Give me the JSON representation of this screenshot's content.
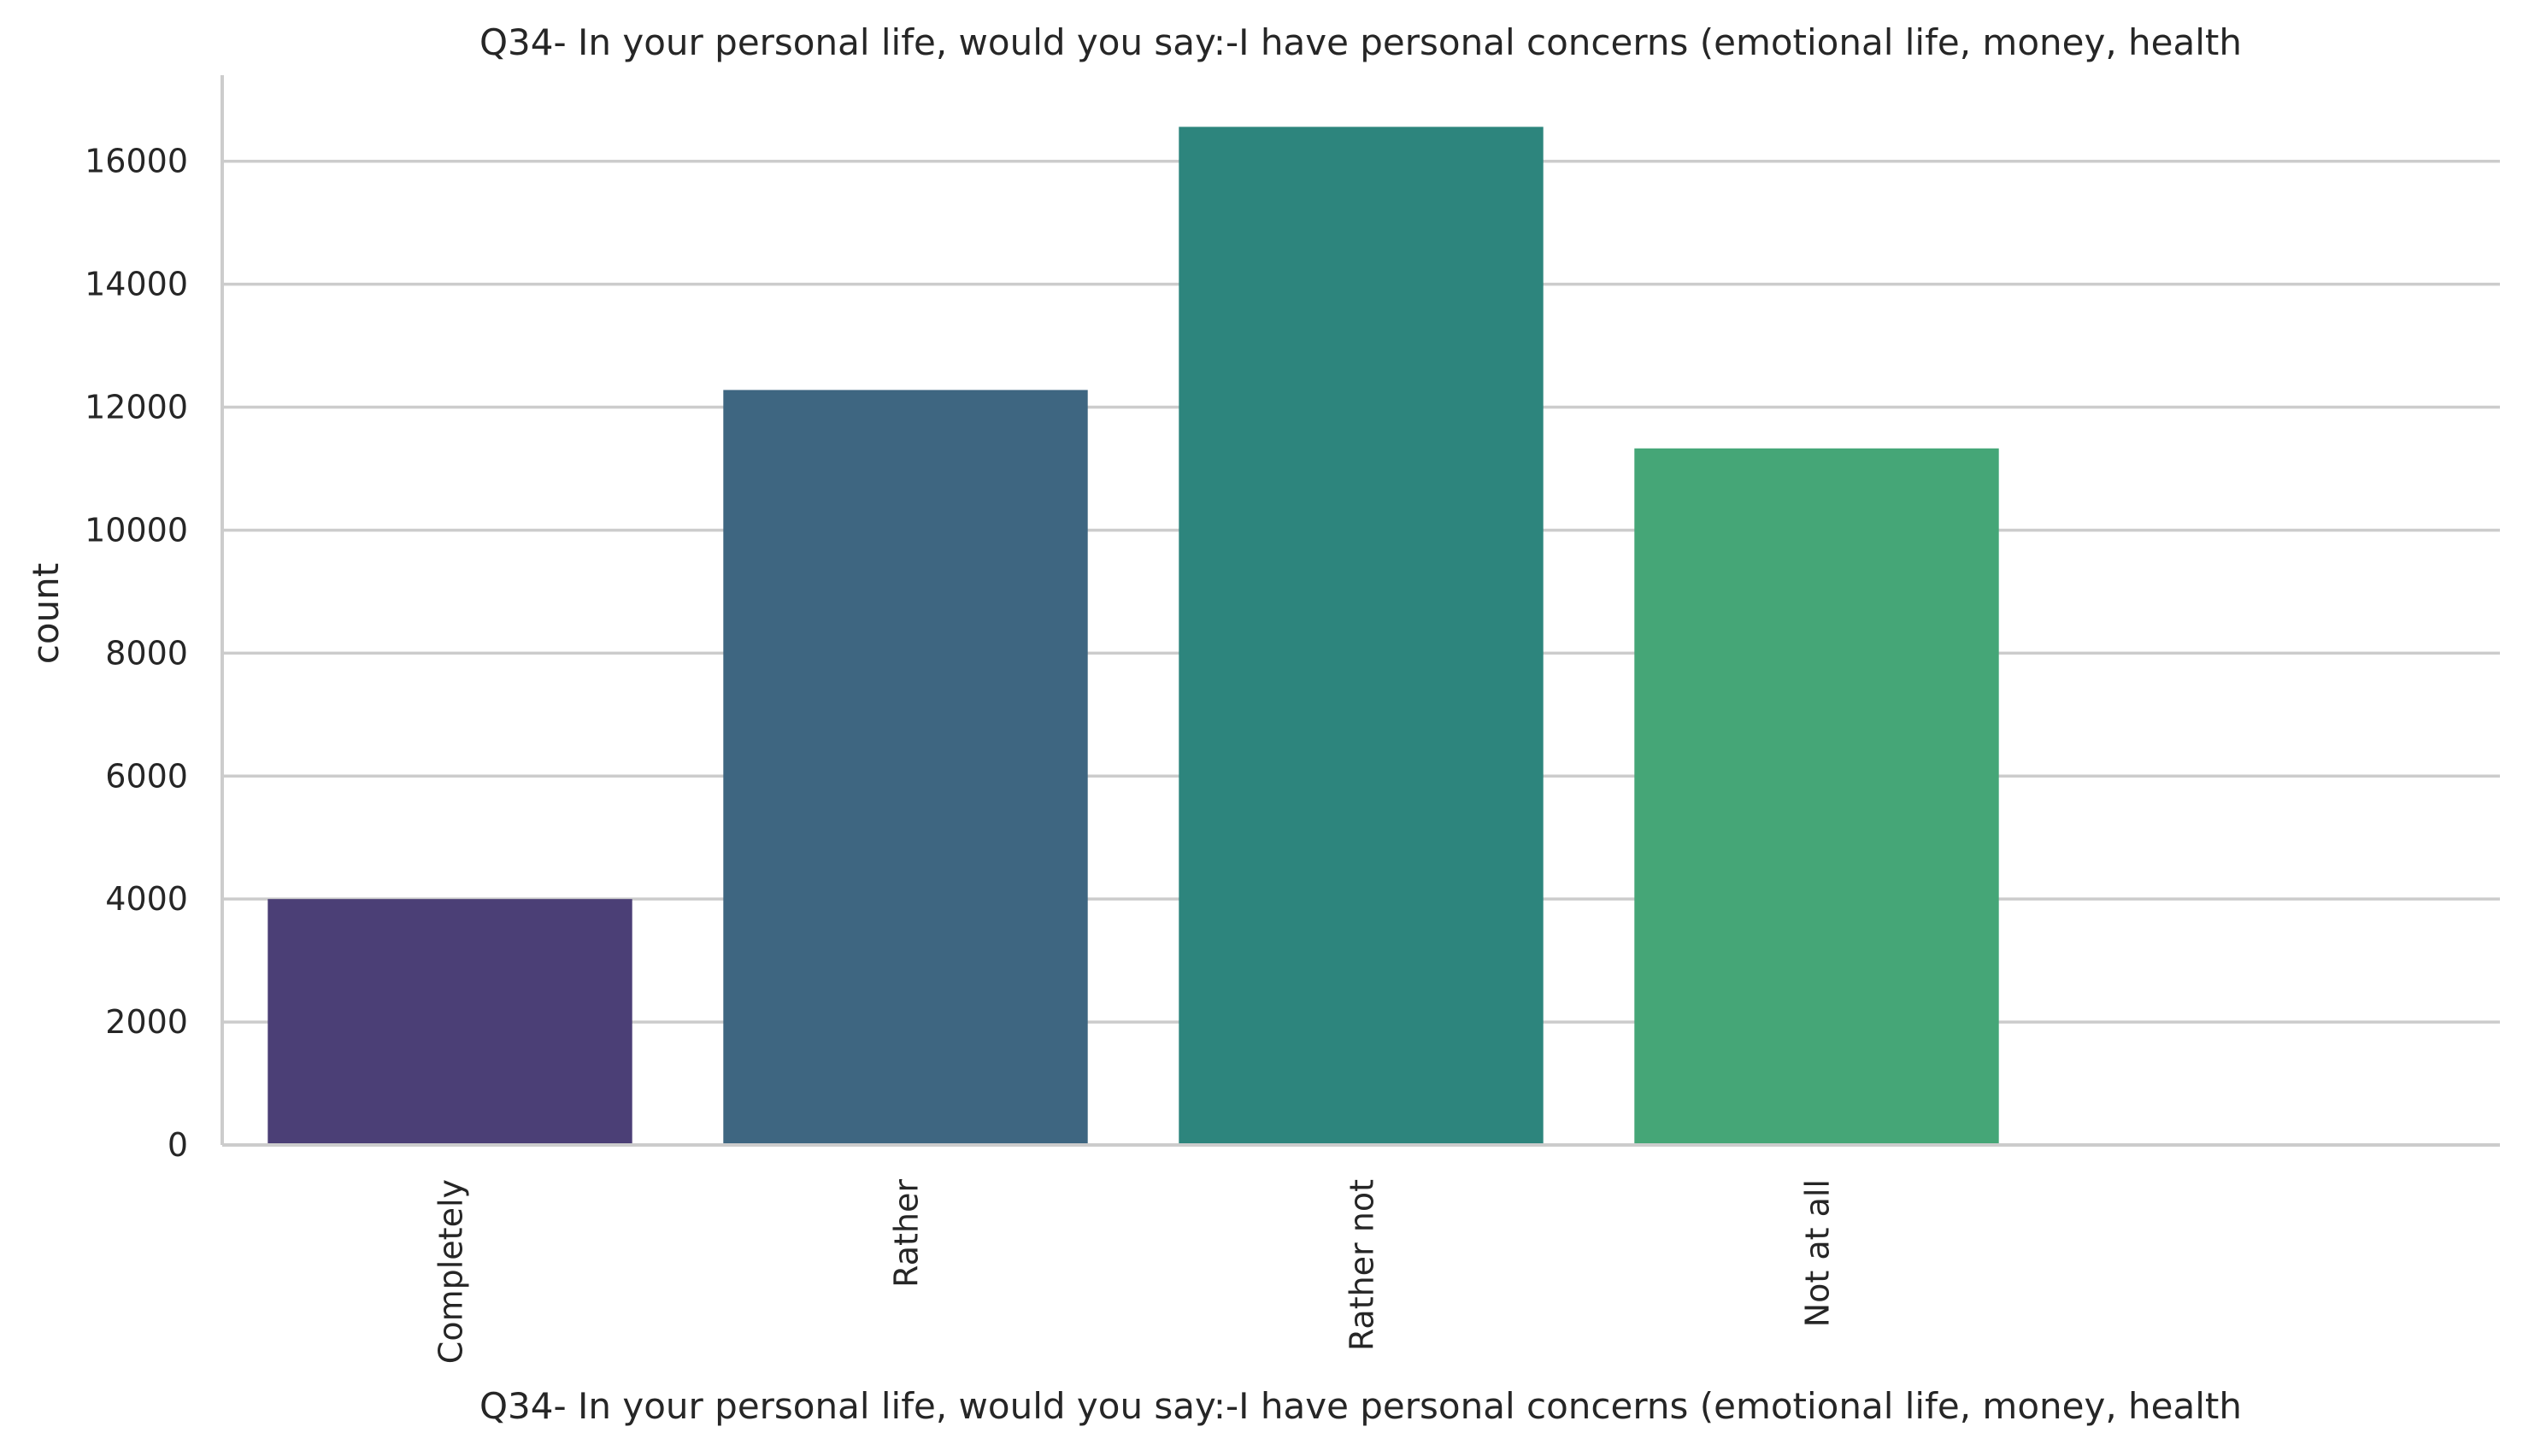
{
  "chart_data": {
    "type": "bar",
    "title": "Q34- In your personal life, would you say:-I have personal concerns (emotional life, money, health",
    "xlabel": "Q34- In your personal life, would you say:-I have personal concerns (emotional life, money, health",
    "ylabel": "count",
    "categories": [
      "Completely",
      "Rather",
      "Rather not",
      "Not at all"
    ],
    "values": [
      4000,
      12280,
      16560,
      11330
    ],
    "colors": [
      "#4b3f76",
      "#3e6681",
      "#2d857d",
      "#45a677"
    ],
    "category_slots": 5,
    "ylim": [
      0,
      17400
    ],
    "yticks": [
      0,
      2000,
      4000,
      6000,
      8000,
      10000,
      12000,
      14000,
      16000
    ],
    "grid": "horizontal",
    "legend": "none"
  }
}
